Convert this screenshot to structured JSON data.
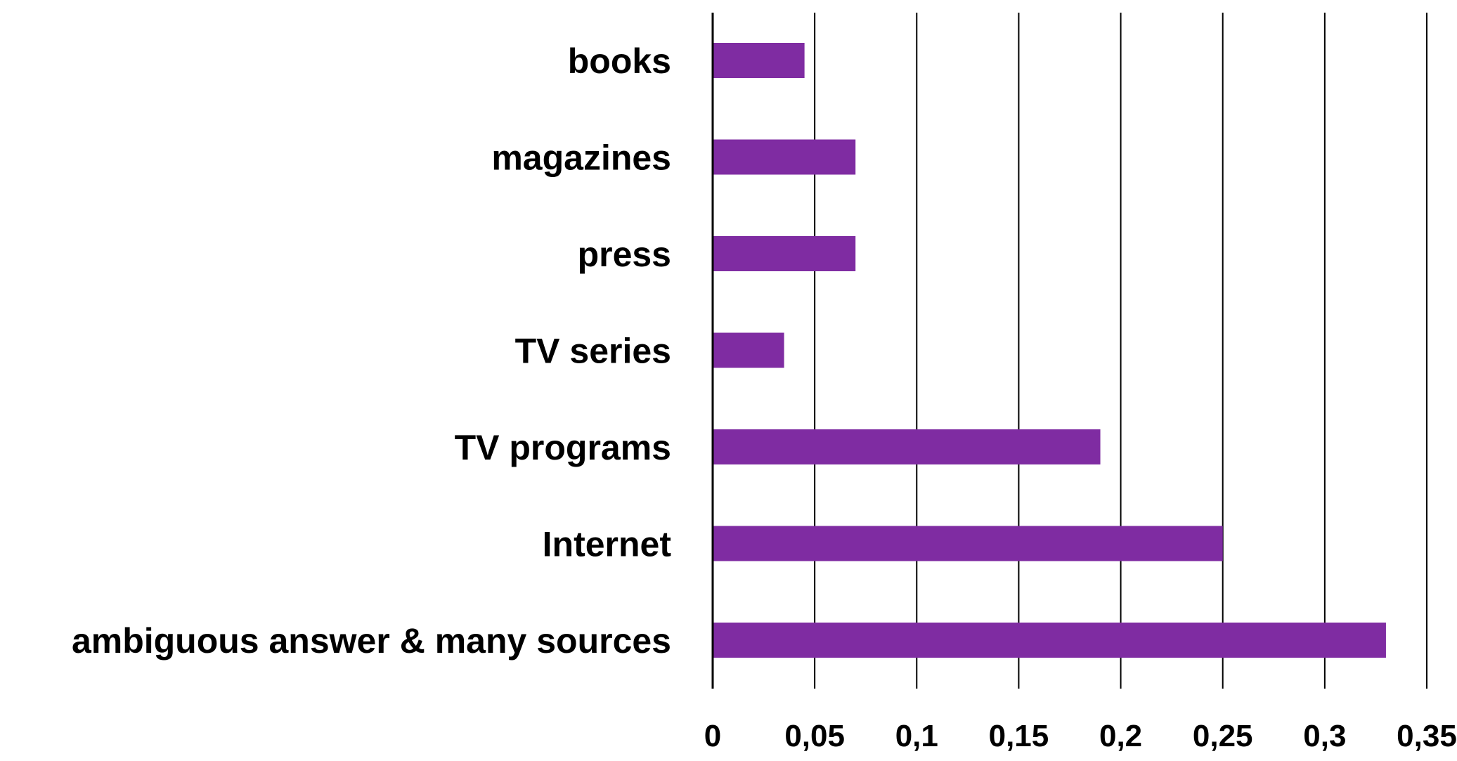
{
  "chart_data": {
    "type": "bar",
    "orientation": "horizontal",
    "title": "",
    "xlabel": "",
    "ylabel": "",
    "categories": [
      "books",
      "magazines",
      "press",
      "TV series",
      "TV programs",
      "Internet",
      "ambiguous answer & many sources"
    ],
    "values": [
      0.045,
      0.07,
      0.07,
      0.035,
      0.19,
      0.25,
      0.33
    ],
    "xlim": [
      0,
      0.35
    ],
    "ticks": [
      0,
      0.05,
      0.1,
      0.15,
      0.2,
      0.25,
      0.3,
      0.35
    ],
    "tick_labels": [
      "0",
      "0,05",
      "0,1",
      "0,15",
      "0,2",
      "0,25",
      "0,3",
      "0,35"
    ],
    "bar_color": "#7F2CA2",
    "grid": "vertical",
    "legend": "none"
  }
}
